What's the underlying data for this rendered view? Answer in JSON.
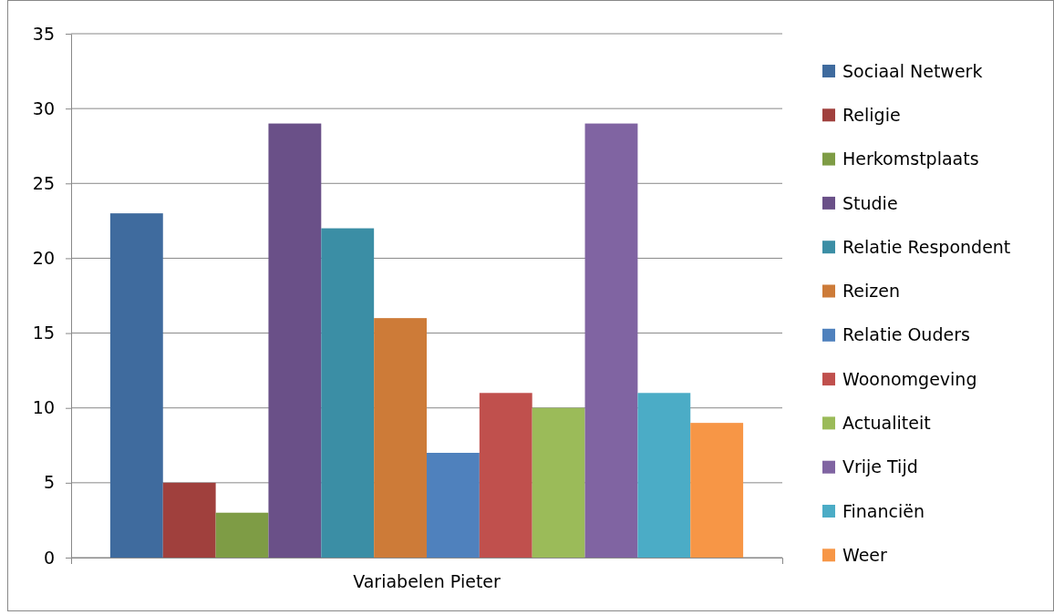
{
  "chart_data": {
    "type": "bar",
    "categories": [
      "Variabelen Pieter"
    ],
    "series": [
      {
        "name": "Sociaal Netwerk",
        "color": "#3f6b9e",
        "values": [
          23
        ]
      },
      {
        "name": "Religie",
        "color": "#a0403d",
        "values": [
          5
        ]
      },
      {
        "name": "Herkomstplaats",
        "color": "#7e9c45",
        "values": [
          3
        ]
      },
      {
        "name": "Studie",
        "color": "#6a5088",
        "values": [
          29
        ]
      },
      {
        "name": "Relatie Respondent",
        "color": "#3b8ea5",
        "values": [
          22
        ]
      },
      {
        "name": "Reizen",
        "color": "#cd7b38",
        "values": [
          16
        ]
      },
      {
        "name": "Relatie Ouders",
        "color": "#4f81bd",
        "values": [
          7
        ]
      },
      {
        "name": "Woonomgeving",
        "color": "#c0504d",
        "values": [
          11
        ]
      },
      {
        "name": "Actualiteit",
        "color": "#9bbb59",
        "values": [
          10
        ]
      },
      {
        "name": "Vrije Tijd",
        "color": "#8064a2",
        "values": [
          29
        ]
      },
      {
        "name": "Financiën",
        "color": "#4bacc6",
        "values": [
          11
        ]
      },
      {
        "name": "Weer",
        "color": "#f79646",
        "values": [
          9
        ]
      }
    ],
    "ylim": [
      0,
      35
    ],
    "yticks": [
      0,
      5,
      10,
      15,
      20,
      25,
      30,
      35
    ],
    "grid": "y",
    "legend": "right"
  }
}
